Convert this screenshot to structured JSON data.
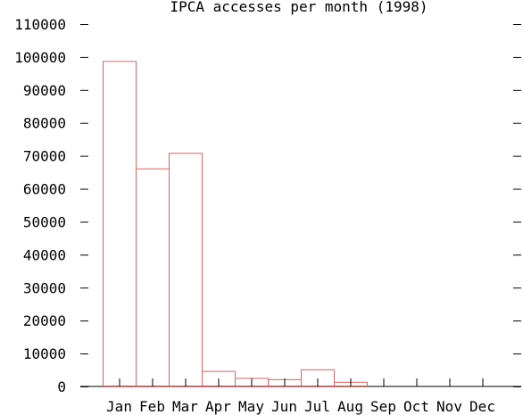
{
  "chart_data": {
    "type": "bar",
    "title": "IPCA accesses per month (1998)",
    "categories": [
      "Jan",
      "Feb",
      "Mar",
      "Apr",
      "May",
      "Jun",
      "Jul",
      "Aug",
      "Sep",
      "Oct",
      "Nov",
      "Dec"
    ],
    "values": [
      98800,
      66200,
      70900,
      4700,
      2600,
      2200,
      5200,
      1400,
      0,
      0,
      0,
      0
    ],
    "ylim": [
      0,
      110000
    ],
    "yticks": [
      "0",
      "10000",
      "20000",
      "30000",
      "40000",
      "50000",
      "60000",
      "70000",
      "80000",
      "90000",
      "100000",
      "110000"
    ],
    "xlabel": "",
    "ylabel": "",
    "grid": false,
    "colors": {
      "bar_stroke": "#e06060",
      "axis": "#000000",
      "text": "#000000"
    }
  }
}
